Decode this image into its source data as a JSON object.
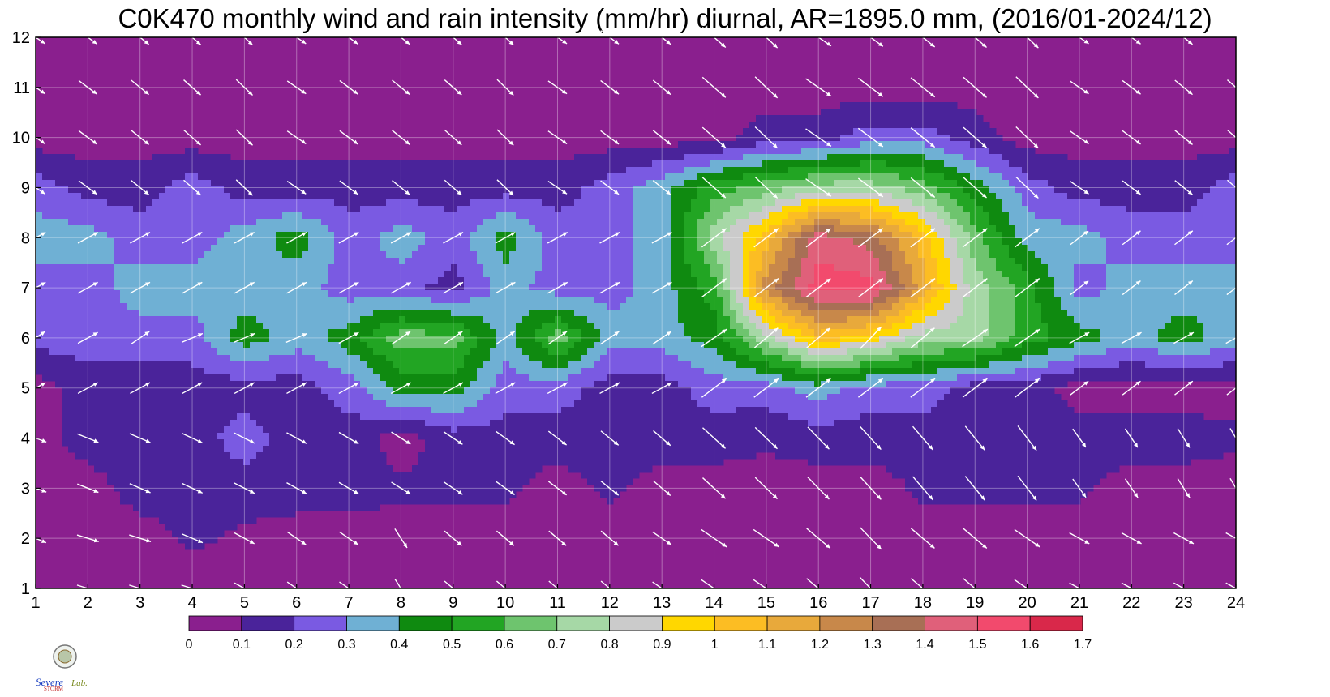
{
  "chart_data": {
    "type": "heatmap",
    "subtype": "filled-contour-with-wind-vectors",
    "title": "C0K470 monthly wind and rain intensity (mm/hr) diurnal, AR=1895.0 mm, (2016/01-2024/12)",
    "xlabel": "",
    "ylabel": "",
    "x": [
      1,
      2,
      3,
      4,
      5,
      6,
      7,
      8,
      9,
      10,
      11,
      12,
      13,
      14,
      15,
      16,
      17,
      18,
      19,
      20,
      21,
      22,
      23,
      24
    ],
    "y": [
      1,
      2,
      3,
      4,
      5,
      6,
      7,
      8,
      9,
      10,
      11,
      12
    ],
    "xlim": [
      1,
      24
    ],
    "ylim": [
      1,
      12
    ],
    "grid": true,
    "z": [
      [
        0.05,
        0.05,
        0.05,
        0.05,
        0.05,
        0.05,
        0.05,
        0.05,
        0.05,
        0.05,
        0.05,
        0.05,
        0.05,
        0.05,
        0.05,
        0.05,
        0.05,
        0.05,
        0.05,
        0.05,
        0.05,
        0.05,
        0.05,
        0.05
      ],
      [
        0.05,
        0.05,
        0.05,
        0.12,
        0.08,
        0.05,
        0.05,
        0.05,
        0.05,
        0.05,
        0.05,
        0.05,
        0.05,
        0.05,
        0.05,
        0.05,
        0.05,
        0.05,
        0.05,
        0.05,
        0.05,
        0.05,
        0.05,
        0.05
      ],
      [
        0.05,
        0.05,
        0.15,
        0.15,
        0.15,
        0.15,
        0.15,
        0.12,
        0.12,
        0.12,
        0.05,
        0.12,
        0.05,
        0.05,
        0.05,
        0.05,
        0.05,
        0.12,
        0.12,
        0.12,
        0.12,
        0.05,
        0.05,
        0.05
      ],
      [
        0.05,
        0.15,
        0.15,
        0.15,
        0.25,
        0.15,
        0.15,
        0.05,
        0.15,
        0.15,
        0.15,
        0.15,
        0.15,
        0.15,
        0.12,
        0.15,
        0.15,
        0.15,
        0.15,
        0.15,
        0.15,
        0.15,
        0.15,
        0.12
      ],
      [
        0.05,
        0.15,
        0.15,
        0.15,
        0.15,
        0.15,
        0.25,
        0.45,
        0.45,
        0.25,
        0.25,
        0.15,
        0.15,
        0.25,
        0.25,
        0.35,
        0.25,
        0.25,
        0.15,
        0.15,
        0.05,
        0.05,
        0.05,
        0.05
      ],
      [
        0.25,
        0.25,
        0.25,
        0.25,
        0.45,
        0.35,
        0.45,
        0.65,
        0.65,
        0.35,
        0.65,
        0.35,
        0.35,
        0.45,
        0.75,
        1.05,
        0.95,
        0.75,
        0.75,
        0.55,
        0.45,
        0.35,
        0.45,
        0.35
      ],
      [
        0.25,
        0.25,
        0.35,
        0.35,
        0.35,
        0.35,
        0.25,
        0.25,
        0.15,
        0.35,
        0.25,
        0.25,
        0.35,
        0.55,
        1.25,
        1.55,
        1.55,
        1.15,
        0.75,
        0.55,
        0.25,
        0.35,
        0.35,
        0.35
      ],
      [
        0.35,
        0.35,
        0.25,
        0.25,
        0.35,
        0.45,
        0.25,
        0.35,
        0.25,
        0.45,
        0.25,
        0.25,
        0.35,
        0.75,
        1.05,
        1.45,
        1.35,
        1.05,
        0.65,
        0.35,
        0.35,
        0.25,
        0.25,
        0.25
      ],
      [
        0.25,
        0.15,
        0.15,
        0.25,
        0.15,
        0.15,
        0.15,
        0.15,
        0.15,
        0.15,
        0.15,
        0.25,
        0.35,
        0.55,
        0.65,
        0.75,
        0.75,
        0.65,
        0.45,
        0.25,
        0.15,
        0.15,
        0.15,
        0.25
      ],
      [
        0.05,
        0.05,
        0.05,
        0.05,
        0.05,
        0.05,
        0.05,
        0.05,
        0.05,
        0.05,
        0.05,
        0.05,
        0.05,
        0.05,
        0.15,
        0.15,
        0.25,
        0.25,
        0.15,
        0.05,
        0.05,
        0.05,
        0.05,
        0.05
      ],
      [
        0.05,
        0.05,
        0.05,
        0.05,
        0.05,
        0.05,
        0.05,
        0.05,
        0.05,
        0.05,
        0.05,
        0.05,
        0.05,
        0.05,
        0.05,
        0.05,
        0.05,
        0.05,
        0.05,
        0.05,
        0.05,
        0.05,
        0.05,
        0.05
      ],
      [
        0.05,
        0.05,
        0.05,
        0.05,
        0.05,
        0.05,
        0.05,
        0.05,
        0.05,
        0.05,
        0.05,
        0.05,
        0.05,
        0.05,
        0.05,
        0.05,
        0.05,
        0.05,
        0.05,
        0.05,
        0.05,
        0.05,
        0.05,
        0.05
      ]
    ],
    "wind_direction_rows": {
      "1": [
        0.4,
        0.3,
        0.3,
        0.3,
        0.5,
        0.6,
        0.6,
        1.0,
        0.7,
        0.7,
        0.7,
        0.7,
        0.6,
        0.6,
        0.6,
        0.7,
        0.8,
        0.7,
        0.7,
        0.6,
        0.5,
        0.5,
        0.5,
        0.5
      ],
      "2": [
        0.4,
        0.3,
        0.3,
        0.4,
        0.5,
        0.6,
        0.6,
        1.0,
        0.7,
        0.7,
        0.7,
        0.7,
        0.6,
        0.6,
        0.6,
        0.7,
        0.8,
        0.7,
        0.7,
        0.6,
        0.5,
        0.5,
        0.5,
        0.5
      ],
      "6": [
        -0.6,
        -0.5,
        -0.6,
        -0.4,
        -0.4,
        -0.4,
        -0.5,
        -0.6,
        -0.6,
        -0.6,
        -0.6,
        -0.6,
        -0.6,
        -0.6,
        -0.7,
        -0.7,
        -0.8,
        -0.7,
        -0.6,
        -0.6,
        -0.5,
        -0.5,
        -0.5,
        -0.5
      ]
    },
    "colorbar": {
      "levels": [
        0,
        0.1,
        0.2,
        0.3,
        0.4,
        0.5,
        0.6,
        0.7,
        0.8,
        0.9,
        1,
        1.1,
        1.2,
        1.3,
        1.4,
        1.5,
        1.6,
        1.7
      ],
      "tick_labels": [
        "0",
        "0.1",
        "0.2",
        "0.3",
        "0.4",
        "0.5",
        "0.6",
        "0.7",
        "0.8",
        "0.9",
        "1",
        "1.1",
        "1.2",
        "1.3",
        "1.4",
        "1.5",
        "1.6",
        "1.7"
      ],
      "colors": [
        "#8a1f8e",
        "#4a239a",
        "#7a5ae2",
        "#6fb0d4",
        "#0f8a10",
        "#22a523",
        "#6ec46e",
        "#a6d8a6",
        "#cbcbcb",
        "#ffd700",
        "#fcbd23",
        "#e8a93b",
        "#c8884a",
        "#a86f55",
        "#e0607a",
        "#f24a6d",
        "#d9284a"
      ],
      "orientation": "horizontal"
    },
    "contour_line_color": "#f0a020",
    "arrow_color": "#ffffff",
    "logo_text": "Severe Storm Lab."
  }
}
